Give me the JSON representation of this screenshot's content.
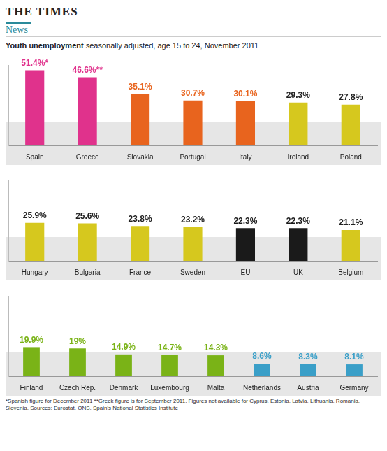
{
  "header": {
    "masthead": "THE TIMES",
    "section": "News",
    "title": "Youth unemployment",
    "subtitle": "seasonally adjusted, age 15 to 24, November 2011"
  },
  "chart_data": [
    {
      "type": "bar",
      "categories": [
        "Spain",
        "Greece",
        "Slovakia",
        "Portugal",
        "Italy",
        "Ireland",
        "Poland"
      ],
      "values": [
        51.4,
        46.6,
        35.1,
        30.7,
        30.1,
        29.3,
        27.8
      ],
      "value_labels": [
        "51.4%*",
        "46.6%**",
        "35.1%",
        "30.7%",
        "30.1%",
        "29.3%",
        "27.8%"
      ],
      "colors": [
        "#e0328c",
        "#e0328c",
        "#e8641e",
        "#e8641e",
        "#e8641e",
        "#d6c81e",
        "#d6c81e"
      ],
      "ylim": [
        0,
        55
      ],
      "data_labels": true,
      "tick_labels": "x",
      "grid": false
    },
    {
      "type": "bar",
      "categories": [
        "Hungary",
        "Bulgaria",
        "France",
        "Sweden",
        "EU",
        "UK",
        "Belgium"
      ],
      "values": [
        25.9,
        25.6,
        23.8,
        23.2,
        22.3,
        22.3,
        21.1
      ],
      "value_labels": [
        "25.9%",
        "25.6%",
        "23.8%",
        "23.2%",
        "22.3%",
        "22.3%",
        "21.1%"
      ],
      "colors": [
        "#d6c81e",
        "#d6c81e",
        "#d6c81e",
        "#d6c81e",
        "#1a1a1a",
        "#1a1a1a",
        "#d6c81e"
      ],
      "ylim": [
        0,
        55
      ],
      "data_labels": true,
      "tick_labels": "x",
      "grid": false
    },
    {
      "type": "bar",
      "categories": [
        "Finland",
        "Czech Rep.",
        "Denmark",
        "Luxembourg",
        "Malta",
        "Netherlands",
        "Austria",
        "Germany"
      ],
      "values": [
        19.9,
        19,
        14.9,
        14.7,
        14.3,
        8.6,
        8.3,
        8.1
      ],
      "value_labels": [
        "19.9%",
        "19%",
        "14.9%",
        "14.7%",
        "14.3%",
        "8.6%",
        "8.3%",
        "8.1%"
      ],
      "colors": [
        "#7ab317",
        "#7ab317",
        "#7ab317",
        "#7ab317",
        "#7ab317",
        "#3a9fc8",
        "#3a9fc8",
        "#3a9fc8"
      ],
      "ylim": [
        0,
        55
      ],
      "data_labels": true,
      "tick_labels": "x",
      "grid": false
    }
  ],
  "footnote": "*Spanish figure for December 2011 **Greek figure is for September 2011. Figures not available for Cyprus, Estonia, Latvia, Lithuania, Romania, Slovenia. Sources: Eurostat, ONS, Spain's National Statistics Institute"
}
